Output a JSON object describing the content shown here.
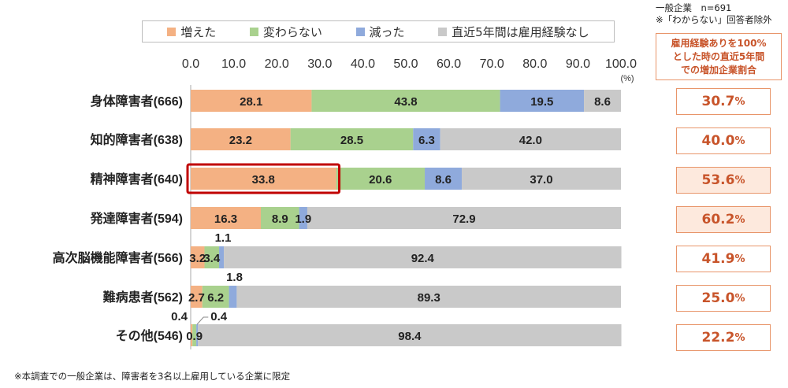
{
  "legend": [
    {
      "label": "増えた",
      "color": "#f4b183"
    },
    {
      "label": "変わらない",
      "color": "#a9d18e"
    },
    {
      "label": "減った",
      "color": "#8faadc"
    },
    {
      "label": "直近5年間は雇用経験なし",
      "color": "#c9c9c9"
    }
  ],
  "top_note": {
    "line1": "一般企業　n=691",
    "line2": "※「わからない」回答者除外"
  },
  "side_header": {
    "line1": "雇用経験ありを100%",
    "line2": "とした時の直近5年間",
    "line3": "での増加企業割合"
  },
  "side_values": [
    {
      "number": "30.7",
      "unit": "%"
    },
    {
      "number": "40.0",
      "unit": "%"
    },
    {
      "number": "53.6",
      "unit": "%"
    },
    {
      "number": "60.2",
      "unit": "%"
    },
    {
      "number": "41.9",
      "unit": "%"
    },
    {
      "number": "25.0",
      "unit": "%"
    },
    {
      "number": "22.2",
      "unit": "%"
    }
  ],
  "footnote": "※本調査での一般企業は、障害者を3名以上雇用している企業に限定",
  "chart_data": {
    "type": "bar",
    "orientation": "horizontal",
    "stacked": true,
    "xlim": [
      0,
      100
    ],
    "xticks": [
      "0.0",
      "10.0",
      "20.0",
      "30.0",
      "40.0",
      "50.0",
      "60.0",
      "70.0",
      "80.0",
      "90.0",
      "100.0"
    ],
    "xunit": "(%)",
    "categories": [
      "身体障害者(666)",
      "知的障害者(638)",
      "精神障害者(640)",
      "発達障害者(594)",
      "高次脳機能障害者(566)",
      "難病患者(562)",
      "その他(546)"
    ],
    "series": [
      {
        "name": "増えた",
        "color": "#f4b183",
        "values": [
          28.1,
          23.2,
          33.8,
          16.3,
          3.2,
          2.7,
          0.4
        ]
      },
      {
        "name": "変わらない",
        "color": "#a9d18e",
        "values": [
          43.8,
          28.5,
          20.6,
          8.9,
          3.4,
          6.2,
          0.9
        ]
      },
      {
        "name": "減った",
        "color": "#8faadc",
        "values": [
          19.5,
          6.3,
          8.6,
          1.9,
          1.1,
          1.8,
          0.4
        ]
      },
      {
        "name": "直近5年間は雇用経験なし",
        "color": "#c9c9c9",
        "values": [
          8.6,
          42.0,
          37.0,
          72.9,
          92.4,
          89.3,
          98.4
        ]
      }
    ],
    "data_labels": [
      [
        {
          "text": "28.1"
        },
        {
          "text": "43.8"
        },
        {
          "text": "19.5"
        },
        {
          "text": "8.6"
        }
      ],
      [
        {
          "text": "23.2"
        },
        {
          "text": "28.5"
        },
        {
          "text": "6.3"
        },
        {
          "text": "42.0"
        }
      ],
      [
        {
          "text": "33.8"
        },
        {
          "text": "20.6"
        },
        {
          "text": "8.6"
        },
        {
          "text": "37.0"
        }
      ],
      [
        {
          "text": "16.3"
        },
        {
          "text": "8.9"
        },
        {
          "text": "1.9"
        },
        {
          "text": "72.9"
        }
      ],
      [
        {
          "text": "3.2"
        },
        {
          "text": "3.4"
        },
        {
          "text": "1.1",
          "position": "above"
        },
        {
          "text": "92.4"
        }
      ],
      [
        {
          "text": "2.7"
        },
        {
          "text": "6.2"
        },
        {
          "text": "1.8",
          "position": "above"
        },
        {
          "text": "89.3"
        }
      ],
      [
        {
          "text": "0.4",
          "position": "above-left"
        },
        {
          "text": "0.9"
        },
        {
          "text": "0.4",
          "position": "above-right"
        },
        {
          "text": "98.4"
        }
      ]
    ],
    "highlight": {
      "row": 2,
      "segment": 0,
      "color": "#c00000"
    }
  }
}
